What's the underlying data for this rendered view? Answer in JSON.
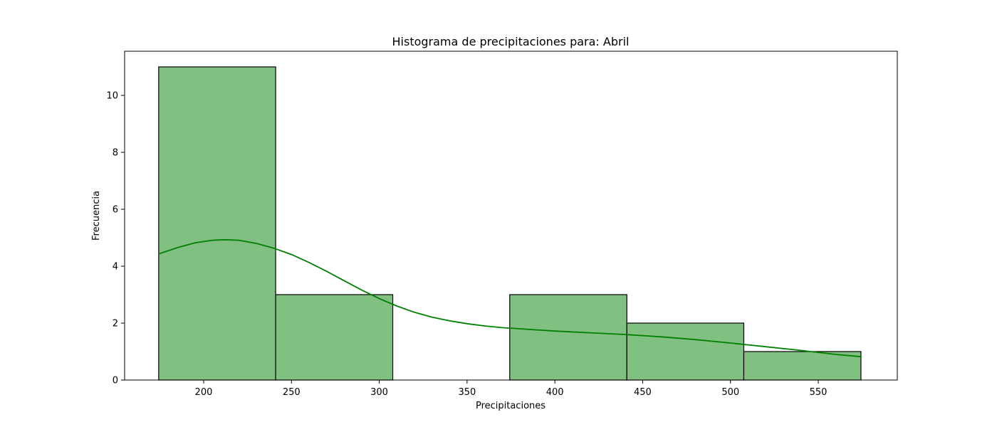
{
  "chart_data": {
    "type": "bar",
    "title": "Histograma de precipitaciones para: Abril",
    "xlabel": "Precipitaciones",
    "ylabel": "Frecuencia",
    "xlim": [
      155,
      595
    ],
    "ylim": [
      0,
      11.55
    ],
    "xticks": [
      200,
      250,
      300,
      350,
      400,
      450,
      500,
      550
    ],
    "yticks": [
      0,
      2,
      4,
      6,
      8,
      10
    ],
    "bins": [
      {
        "x0": 174.4,
        "x1": 241.0,
        "count": 11
      },
      {
        "x0": 241.0,
        "x1": 307.7,
        "count": 3
      },
      {
        "x0": 307.7,
        "x1": 374.3,
        "count": 0
      },
      {
        "x0": 374.3,
        "x1": 441.0,
        "count": 3
      },
      {
        "x0": 441.0,
        "x1": 507.6,
        "count": 2
      },
      {
        "x0": 507.6,
        "x1": 574.3,
        "count": 1
      }
    ],
    "kde": {
      "x": [
        174.4,
        185,
        195,
        205,
        212,
        220,
        230,
        240,
        250,
        260,
        270,
        280,
        290,
        300,
        310,
        320,
        330,
        340,
        350,
        360,
        370,
        380,
        390,
        400,
        420,
        440,
        460,
        480,
        500,
        520,
        540,
        560,
        574.3
      ],
      "y": [
        4.43,
        4.65,
        4.82,
        4.91,
        4.93,
        4.91,
        4.8,
        4.63,
        4.41,
        4.13,
        3.82,
        3.49,
        3.16,
        2.86,
        2.6,
        2.38,
        2.21,
        2.08,
        1.98,
        1.9,
        1.84,
        1.8,
        1.76,
        1.72,
        1.66,
        1.6,
        1.52,
        1.42,
        1.3,
        1.17,
        1.04,
        0.9,
        0.82
      ]
    },
    "bar_color": "#80c080",
    "line_color": "#008000",
    "grid": false,
    "legend": false
  }
}
